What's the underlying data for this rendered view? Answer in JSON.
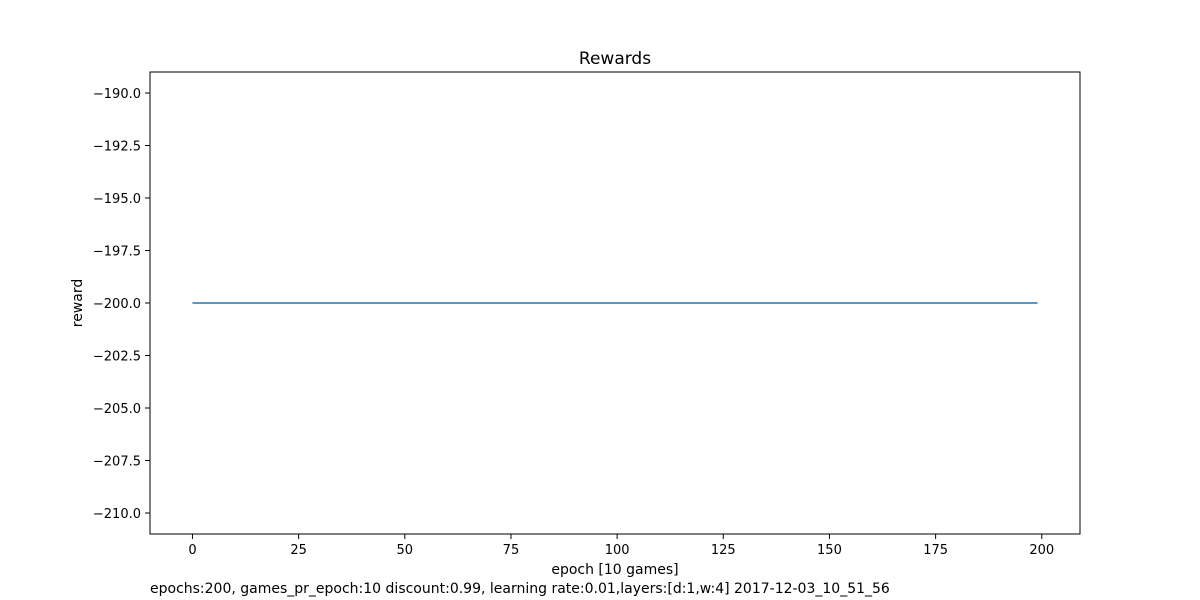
{
  "chart_data": {
    "type": "line",
    "title": "Rewards",
    "xlabel": "epoch [10 games]",
    "ylabel": "reward",
    "xlim": [
      -10,
      209
    ],
    "ylim": [
      -211,
      -189
    ],
    "x_ticks": [
      0,
      25,
      50,
      75,
      100,
      125,
      150,
      175,
      200
    ],
    "y_ticks": [
      -190.0,
      -192.5,
      -195.0,
      -197.5,
      -200.0,
      -202.5,
      -205.0,
      -207.5,
      -210.0
    ],
    "y_tick_labels": [
      "−190.0",
      "−192.5",
      "−195.0",
      "−197.5",
      "−200.0",
      "−202.5",
      "−205.0",
      "−207.5",
      "−210.0"
    ],
    "grid": false,
    "series": [
      {
        "x": [
          0,
          199
        ],
        "y": [
          -200,
          -200
        ],
        "color": "#1f77b4"
      }
    ]
  },
  "footer_text": "epochs:200, games_pr_epoch:10 discount:0.99, learning rate:0.01,layers:[d:1,w:4] 2017-12-03_10_51_56"
}
